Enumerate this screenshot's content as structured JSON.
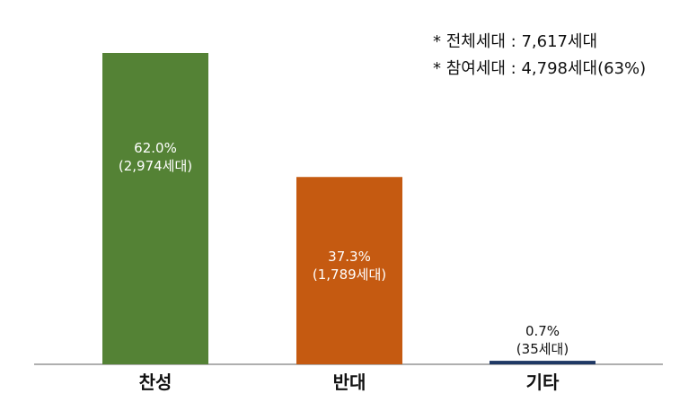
{
  "notes": [
    "* 전체세대 : 7,617세대",
    "* 참여세대 : 4,798세대(63%)"
  ],
  "chart_data": {
    "type": "bar",
    "title": "",
    "xlabel": "",
    "ylabel": "",
    "ylim": [
      0,
      65
    ],
    "grid": false,
    "categories": [
      "찬성",
      "반대",
      "기타"
    ],
    "values": [
      62.0,
      37.3,
      0.7
    ],
    "value_labels": [
      "62.0%",
      "37.3%",
      "0.7%"
    ],
    "count_labels": [
      "(2,974세대)",
      "(1,789세대)",
      "(35세대)"
    ],
    "colors": [
      "#548235",
      "#c55a11",
      "#1f3864"
    ],
    "label_colors": [
      "#ffffff",
      "#ffffff",
      "#111111"
    ]
  }
}
